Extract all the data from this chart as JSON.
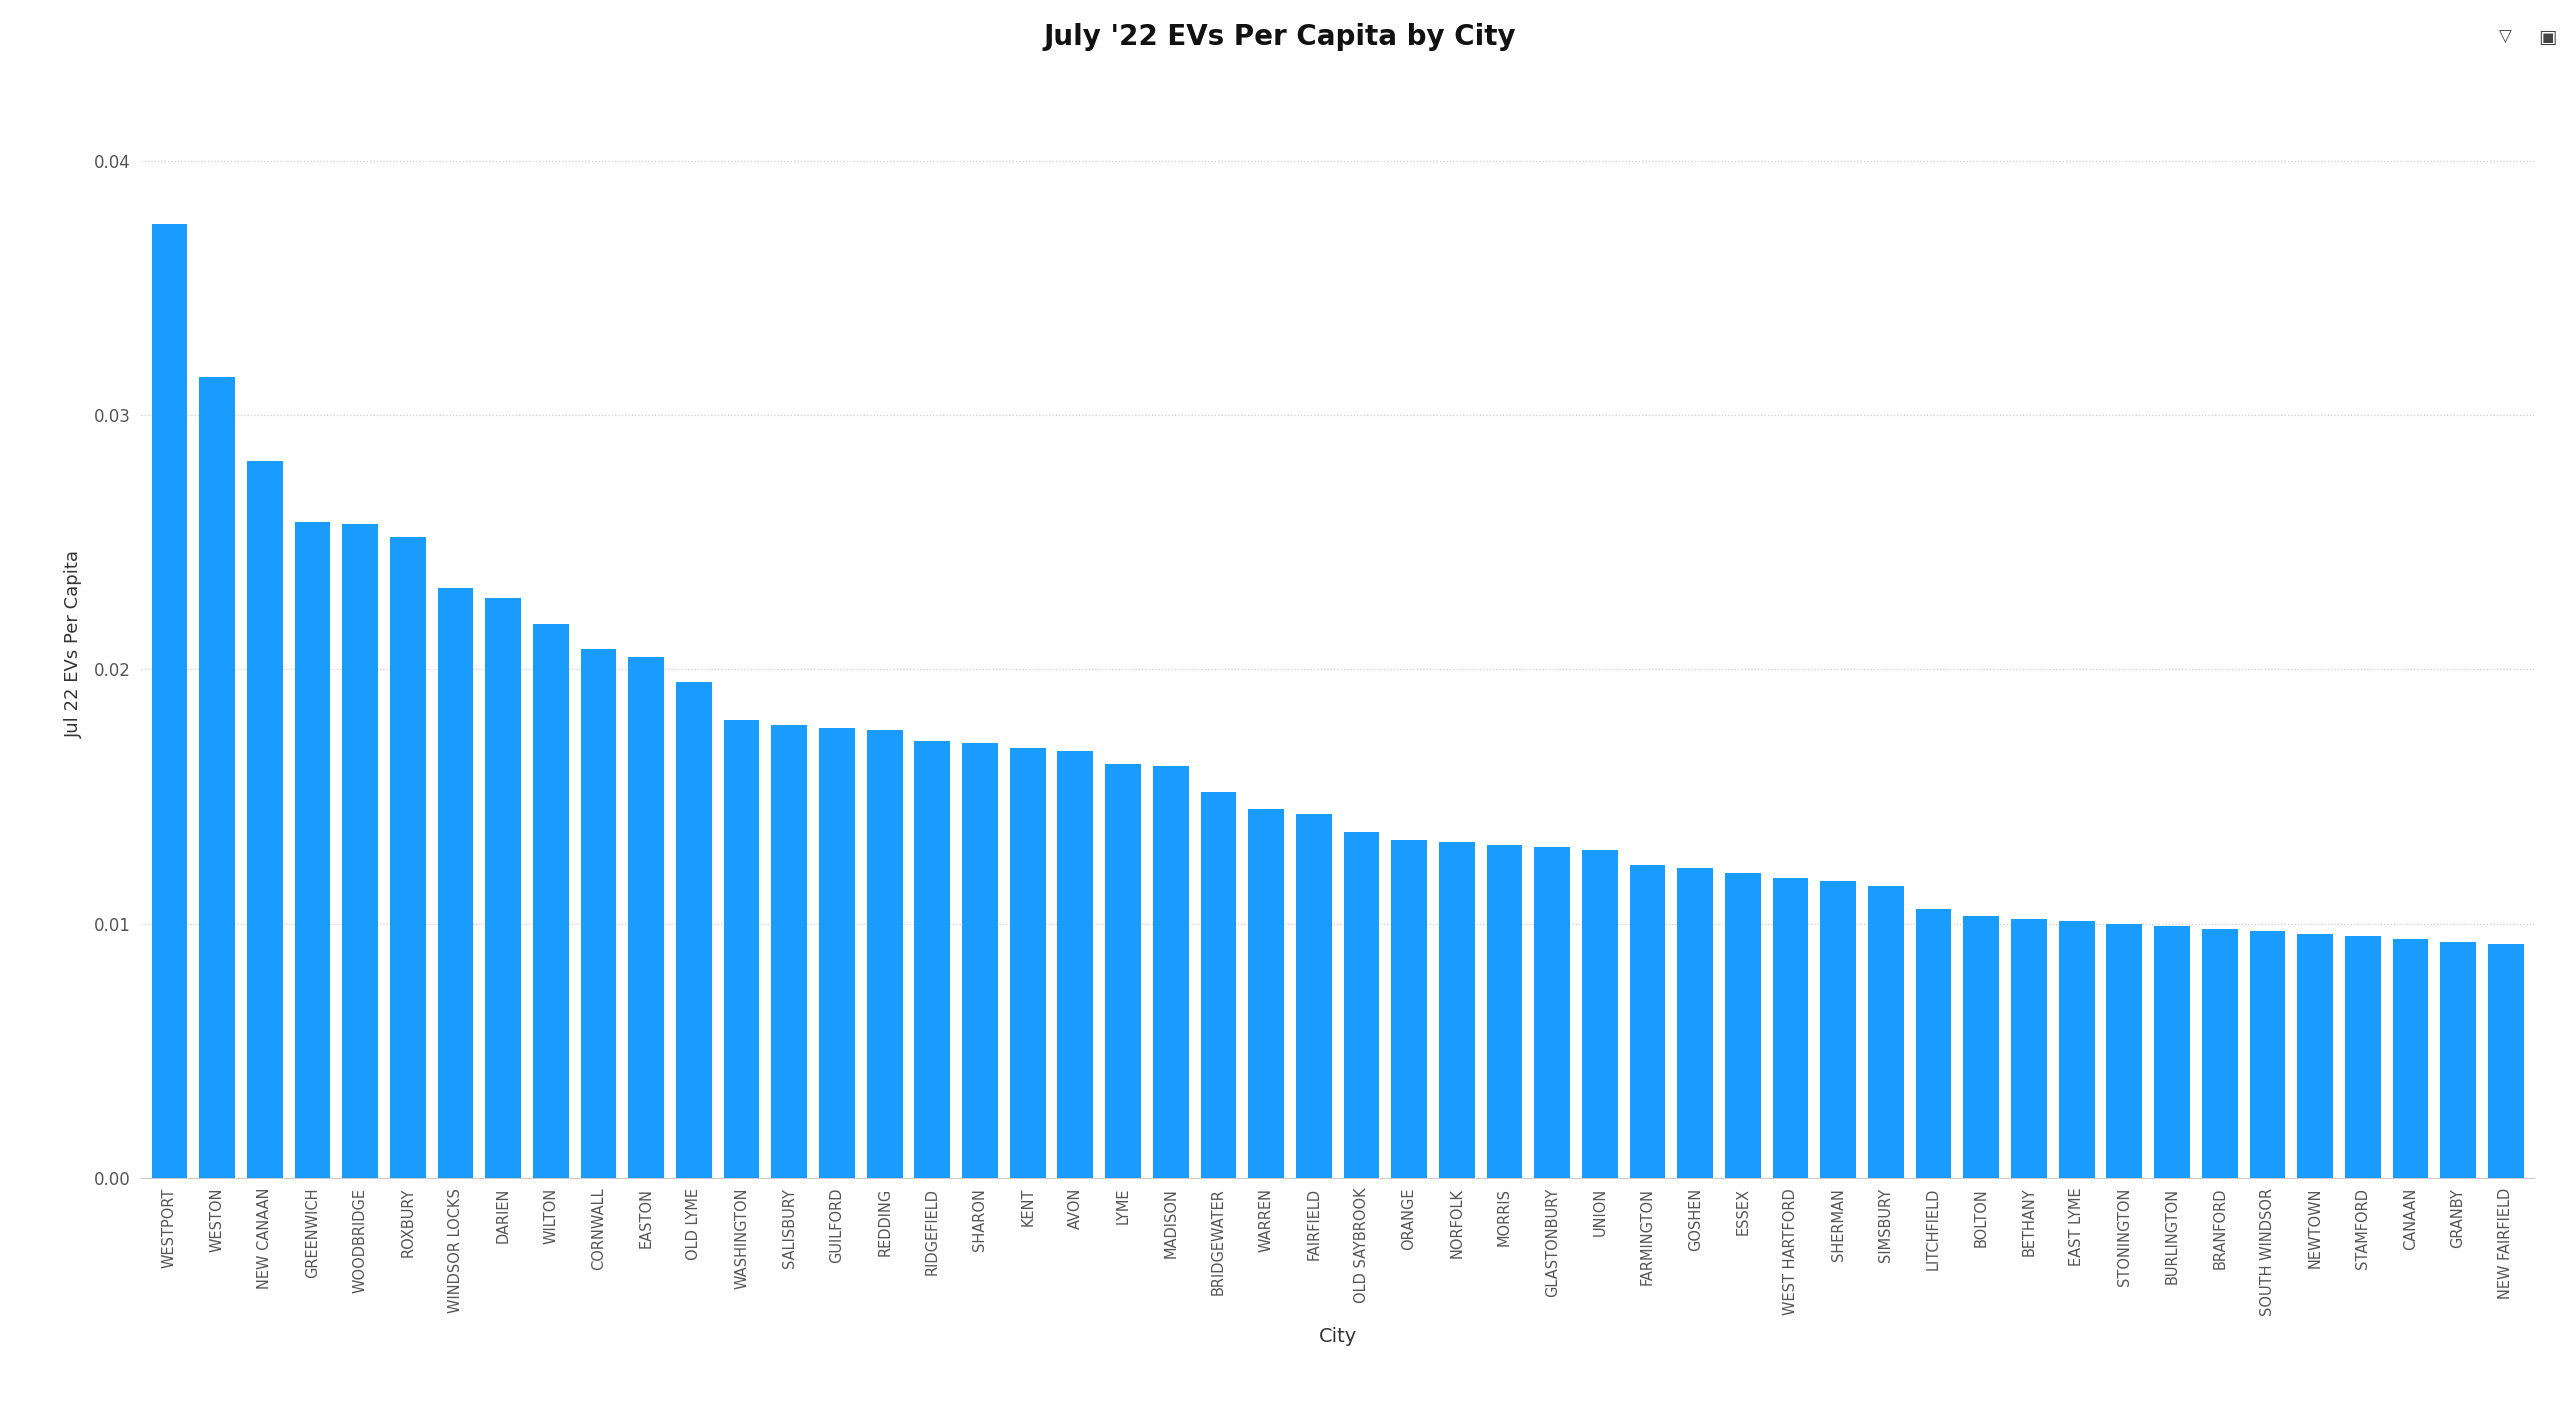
{
  "title": "July '22 EVs Per Capita by City",
  "xlabel": "City",
  "ylabel": "Jul 22 EVs Per Capita",
  "bar_color": "#1a9cff",
  "background_color": "#ffffff",
  "title_bg_color": "#78c2f5",
  "ylim": [
    0,
    0.042
  ],
  "yticks": [
    0.0,
    0.01,
    0.02,
    0.03,
    0.04
  ],
  "categories": [
    "WESTPORT",
    "WESTON",
    "NEW CANAAN",
    "GREENWICH",
    "WOODBRIDGE",
    "ROXBURY",
    "WINDSOR LOCKS",
    "DARIEN",
    "WILTON",
    "CORNWALL",
    "EASTON",
    "OLD LYME",
    "WASHINGTON",
    "SALISBURY",
    "GUILFORD",
    "REDDING",
    "RIDGEFIELD",
    "SHARON",
    "KENT",
    "AVON",
    "LYME",
    "MADISON",
    "BRIDGEWATER",
    "WARREN",
    "FAIRFIELD",
    "OLD SAYBROOK",
    "ORANGE",
    "NORFOLK",
    "MORRIS",
    "GLASTONBURY",
    "UNION",
    "FARMINGTON",
    "GOSHEN",
    "ESSEX",
    "WEST HARTFORD",
    "SHERMAN",
    "SIMSBURY",
    "LITCHFIELD",
    "BOLTON",
    "BETHANY",
    "EAST LYME",
    "STONINGTON",
    "BURLINGTON",
    "BRANFORD",
    "SOUTH WINDSOR",
    "NEWTOWN",
    "STAMFORD",
    "CANAAN",
    "GRANBY",
    "NEW FAIRFIELD"
  ],
  "values": [
    0.0375,
    0.0315,
    0.0282,
    0.0258,
    0.0257,
    0.0252,
    0.0232,
    0.0228,
    0.0218,
    0.0208,
    0.0205,
    0.0195,
    0.018,
    0.0178,
    0.0177,
    0.0176,
    0.0172,
    0.0171,
    0.0169,
    0.0168,
    0.0163,
    0.0162,
    0.0152,
    0.0145,
    0.0143,
    0.0136,
    0.0133,
    0.0132,
    0.0131,
    0.013,
    0.0129,
    0.0123,
    0.0122,
    0.012,
    0.0118,
    0.0117,
    0.0115,
    0.0106,
    0.0103,
    0.0102,
    0.0101,
    0.01,
    0.0099,
    0.0098,
    0.0097,
    0.0096,
    0.0095,
    0.0094,
    0.0093,
    0.0092
  ]
}
